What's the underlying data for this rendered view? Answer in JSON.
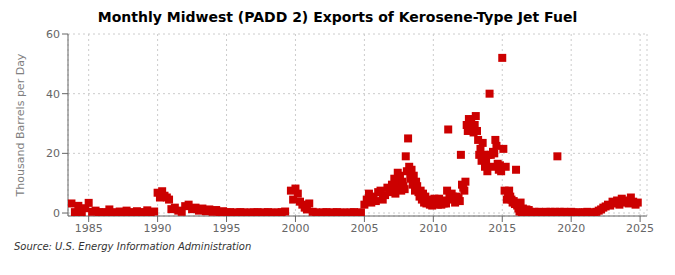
{
  "chart_data": {
    "type": "scatter",
    "title": "Monthly Midwest (PADD 2) Exports of Kerosene-Type Jet Fuel",
    "ylabel": "Thousand Barrels per Day",
    "annotations": [
      "Source: U.S. Energy Information Administration"
    ],
    "color": "#cc0000",
    "marker": "square",
    "grid": true,
    "xlim": [
      1983.5,
      2025.5
    ],
    "ylim": [
      -1,
      60
    ],
    "xticks": [
      1985,
      1990,
      1995,
      2000,
      2005,
      2010,
      2015,
      2020,
      2025
    ],
    "yticks": [
      0,
      20,
      40,
      60
    ],
    "x": [
      1983.75,
      1984.0,
      1984.25,
      1984.5,
      1984.75,
      1985.0,
      1985.25,
      1985.5,
      1985.75,
      1986.0,
      1986.25,
      1986.5,
      1986.75,
      1987.0,
      1987.25,
      1987.5,
      1987.75,
      1988.0,
      1988.25,
      1988.5,
      1988.75,
      1989.0,
      1989.25,
      1989.5,
      1989.75,
      1990.0,
      1990.17,
      1990.33,
      1990.5,
      1990.67,
      1990.83,
      1991.0,
      1991.25,
      1991.5,
      1991.75,
      1992.0,
      1992.25,
      1992.5,
      1992.75,
      1993.0,
      1993.25,
      1993.5,
      1993.75,
      1994.0,
      1994.25,
      1994.5,
      1994.75,
      1995.0,
      1995.25,
      1995.5,
      1995.75,
      1996.0,
      1996.25,
      1996.5,
      1996.75,
      1997.0,
      1997.25,
      1997.5,
      1997.75,
      1998.0,
      1998.25,
      1998.5,
      1998.75,
      1999.0,
      1999.25,
      1999.67,
      1999.83,
      2000.0,
      2000.17,
      2000.33,
      2000.5,
      2000.67,
      2000.83,
      2001.0,
      2001.25,
      2001.5,
      2001.75,
      2002.0,
      2002.25,
      2002.5,
      2002.75,
      2003.0,
      2003.25,
      2003.5,
      2003.75,
      2004.0,
      2004.25,
      2004.5,
      2004.75,
      2005.0,
      2005.17,
      2005.33,
      2005.5,
      2005.67,
      2005.83,
      2006.0,
      2006.17,
      2006.33,
      2006.5,
      2006.67,
      2006.83,
      2007.0,
      2007.08,
      2007.17,
      2007.25,
      2007.33,
      2007.42,
      2007.5,
      2007.58,
      2007.67,
      2007.75,
      2007.83,
      2007.92,
      2008.0,
      2008.08,
      2008.17,
      2008.25,
      2008.33,
      2008.42,
      2008.5,
      2008.58,
      2008.67,
      2008.75,
      2008.83,
      2008.92,
      2009.0,
      2009.08,
      2009.17,
      2009.25,
      2009.33,
      2009.42,
      2009.5,
      2009.58,
      2009.67,
      2009.75,
      2009.83,
      2009.92,
      2010.0,
      2010.08,
      2010.17,
      2010.25,
      2010.33,
      2010.42,
      2010.5,
      2010.58,
      2010.67,
      2010.75,
      2010.83,
      2010.92,
      2011.0,
      2011.08,
      2011.17,
      2011.25,
      2011.33,
      2011.42,
      2011.5,
      2011.58,
      2011.67,
      2011.75,
      2011.83,
      2011.92,
      2012.0,
      2012.08,
      2012.17,
      2012.25,
      2012.33,
      2012.42,
      2012.5,
      2012.58,
      2012.67,
      2012.75,
      2012.83,
      2012.92,
      2013.0,
      2013.08,
      2013.17,
      2013.25,
      2013.33,
      2013.42,
      2013.5,
      2013.58,
      2013.67,
      2013.75,
      2013.83,
      2013.92,
      2014.0,
      2014.08,
      2014.17,
      2014.25,
      2014.33,
      2014.42,
      2014.5,
      2014.58,
      2014.67,
      2014.75,
      2014.83,
      2014.92,
      2015.0,
      2015.08,
      2015.17,
      2015.25,
      2015.33,
      2015.42,
      2015.5,
      2015.58,
      2015.67,
      2015.75,
      2015.83,
      2015.92,
      2016.0,
      2016.08,
      2016.17,
      2016.25,
      2016.33,
      2016.42,
      2016.5,
      2016.58,
      2016.67,
      2016.75,
      2016.83,
      2016.92,
      2017.0,
      2017.17,
      2017.33,
      2017.5,
      2017.67,
      2017.83,
      2018.0,
      2018.17,
      2018.33,
      2018.5,
      2018.67,
      2018.83,
      2019.0,
      2019.17,
      2019.33,
      2019.5,
      2019.67,
      2019.83,
      2020.0,
      2020.17,
      2020.33,
      2020.5,
      2020.67,
      2020.83,
      2021.0,
      2021.17,
      2021.33,
      2021.5,
      2021.67,
      2021.83,
      2022.0,
      2022.17,
      2022.33,
      2022.5,
      2022.67,
      2022.83,
      2023.0,
      2023.17,
      2023.33,
      2023.5,
      2023.67,
      2023.83,
      2024.0,
      2024.17,
      2024.33,
      2024.5,
      2024.67,
      2024.83
    ],
    "values": [
      3.2,
      0.3,
      2.4,
      0.1,
      1.6,
      3.4,
      0.4,
      0.8,
      0.2,
      0.3,
      0.1,
      1.2,
      0.2,
      0.2,
      0.5,
      0.1,
      0.8,
      0.3,
      0.1,
      0.6,
      0.2,
      0.3,
      0.9,
      0.2,
      0.5,
      6.8,
      5.2,
      7.3,
      5.8,
      5.2,
      4.5,
      1.3,
      1.8,
      0.8,
      0.4,
      2.3,
      2.8,
      1.3,
      1.8,
      0.8,
      1.5,
      0.6,
      1.2,
      0.4,
      1.0,
      0.2,
      0.6,
      0.2,
      0.3,
      0.1,
      0.2,
      0.3,
      0.2,
      0.1,
      0.2,
      0.2,
      0.3,
      0.1,
      0.2,
      0.3,
      0.1,
      0.2,
      0.1,
      0.3,
      0.5,
      7.5,
      4.5,
      8.2,
      6.5,
      3.8,
      2.8,
      1.8,
      1.2,
      3.2,
      0.4,
      0.2,
      0.1,
      0.2,
      0.3,
      0.1,
      0.2,
      0.3,
      0.1,
      0.2,
      0.1,
      0.2,
      0.3,
      0.1,
      0.2,
      2.8,
      4.5,
      6.5,
      3.5,
      5.5,
      4.0,
      7.0,
      7.5,
      4.5,
      6.0,
      8.5,
      7.0,
      9.5,
      7.5,
      11.5,
      6.5,
      10.5,
      13.5,
      8.5,
      12.5,
      7.5,
      10.5,
      9.0,
      8.0,
      19.0,
      14.0,
      25.0,
      15.5,
      11.5,
      14.5,
      9.5,
      12.5,
      7.5,
      10.5,
      9.0,
      7.0,
      5.5,
      7.5,
      4.5,
      6.5,
      3.5,
      5.5,
      3.2,
      4.5,
      3.8,
      2.8,
      3.5,
      2.5,
      3.8,
      4.8,
      3.2,
      4.2,
      2.8,
      4.8,
      3.8,
      2.8,
      4.2,
      3.2,
      3.8,
      3.2,
      7.5,
      28.0,
      5.5,
      4.5,
      6.5,
      5.5,
      5.0,
      3.5,
      5.5,
      4.5,
      5.0,
      4.0,
      19.5,
      9.5,
      8.5,
      7.5,
      10.5,
      29.5,
      27.5,
      31.5,
      28.5,
      30.5,
      29.0,
      27.0,
      29.5,
      32.5,
      27.5,
      24.5,
      19.5,
      21.5,
      17.5,
      23.5,
      19.5,
      15.5,
      18.0,
      14.0,
      19.5,
      40.0,
      19.5,
      15.5,
      20.5,
      20.0,
      24.5,
      22.5,
      16.5,
      14.5,
      16.0,
      14.0,
      52.0,
      21.5,
      7.5,
      15.5,
      4.5,
      6.5,
      7.5,
      5.5,
      4.5,
      3.5,
      4.0,
      3.0,
      14.5,
      2.5,
      1.5,
      0.5,
      3.5,
      0.3,
      1.5,
      0.8,
      0.3,
      1.2,
      0.5,
      1.0,
      0.4,
      0.2,
      0.4,
      0.2,
      0.4,
      0.2,
      0.2,
      0.4,
      0.2,
      0.4,
      0.2,
      0.4,
      19.0,
      0.4,
      0.2,
      0.4,
      0.2,
      0.3,
      0.4,
      0.2,
      0.1,
      0.2,
      0.1,
      0.2,
      0.2,
      0.4,
      0.1,
      0.2,
      0.1,
      0.4,
      0.8,
      1.2,
      1.8,
      2.2,
      2.8,
      2.5,
      3.8,
      3.2,
      4.2,
      2.8,
      4.8,
      3.5,
      4.2,
      3.2,
      5.2,
      3.8,
      2.8,
      3.5
    ]
  }
}
